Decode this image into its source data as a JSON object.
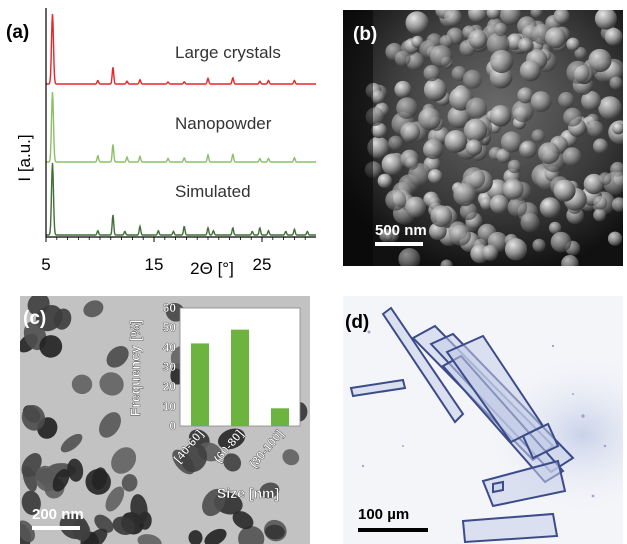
{
  "panels": {
    "a": {
      "label": "(a)",
      "ylabel": "I [a.u.]",
      "xlabel": "2Θ [°]",
      "xticks": [
        "5",
        "15",
        "25"
      ],
      "traces": [
        {
          "name": "Large crystals",
          "color": "#e8242a"
        },
        {
          "name": "Nanopowder",
          "color": "#8cc064"
        },
        {
          "name": "Simulated",
          "color": "#3f6f35"
        }
      ]
    },
    "b": {
      "label": "(b)",
      "scalebar": "500 nm"
    },
    "c": {
      "label": "(c)",
      "scalebar": "200 nm"
    },
    "d": {
      "label": "(d)",
      "scalebar": "100 µm"
    }
  },
  "chart_data": [
    {
      "type": "line",
      "panel": "a",
      "title": "",
      "xlabel": "2Θ [°]",
      "ylabel": "I [a.u.]",
      "xlim": [
        5,
        30
      ],
      "xticks": [
        5,
        15,
        25
      ],
      "series": [
        {
          "name": "Large crystals",
          "color": "#e8242a",
          "peaks_x": [
            5.6,
            9.8,
            11.2,
            12.5,
            13.7,
            16.3,
            17.8,
            20.0,
            22.3,
            24.8,
            25.6,
            28.0
          ],
          "peaks_h": [
            1.0,
            0.05,
            0.24,
            0.04,
            0.06,
            0.03,
            0.03,
            0.08,
            0.09,
            0.04,
            0.05,
            0.05
          ]
        },
        {
          "name": "Nanopowder",
          "color": "#8cc064",
          "peaks_x": [
            5.6,
            9.8,
            11.2,
            12.5,
            13.7,
            16.3,
            17.8,
            20.0,
            22.3,
            24.8,
            25.6,
            28.0
          ],
          "peaks_h": [
            1.0,
            0.09,
            0.25,
            0.07,
            0.08,
            0.05,
            0.06,
            0.1,
            0.11,
            0.05,
            0.05,
            0.06
          ]
        },
        {
          "name": "Simulated",
          "color": "#3f6f35",
          "peaks_x": [
            5.6,
            9.8,
            11.2,
            12.3,
            13.7,
            15.4,
            16.8,
            17.8,
            20.0,
            20.5,
            22.3,
            24.1,
            24.8,
            25.6,
            27.2,
            28.0,
            29.2
          ],
          "peaks_h": [
            1.0,
            0.06,
            0.28,
            0.05,
            0.12,
            0.06,
            0.05,
            0.12,
            0.1,
            0.06,
            0.1,
            0.05,
            0.1,
            0.06,
            0.05,
            0.08,
            0.05
          ]
        }
      ]
    },
    {
      "type": "bar",
      "panel": "c",
      "title": "",
      "xlabel": "Size [nm]",
      "ylabel": "Frequency [%]",
      "categories": [
        "[40-60]",
        "(60-80]",
        "(80-100]"
      ],
      "values": [
        42,
        49,
        9
      ],
      "color": "#6cb33f",
      "ylim": [
        0,
        60
      ],
      "yticks": [
        0,
        10,
        20,
        30,
        40,
        50,
        60
      ]
    }
  ]
}
